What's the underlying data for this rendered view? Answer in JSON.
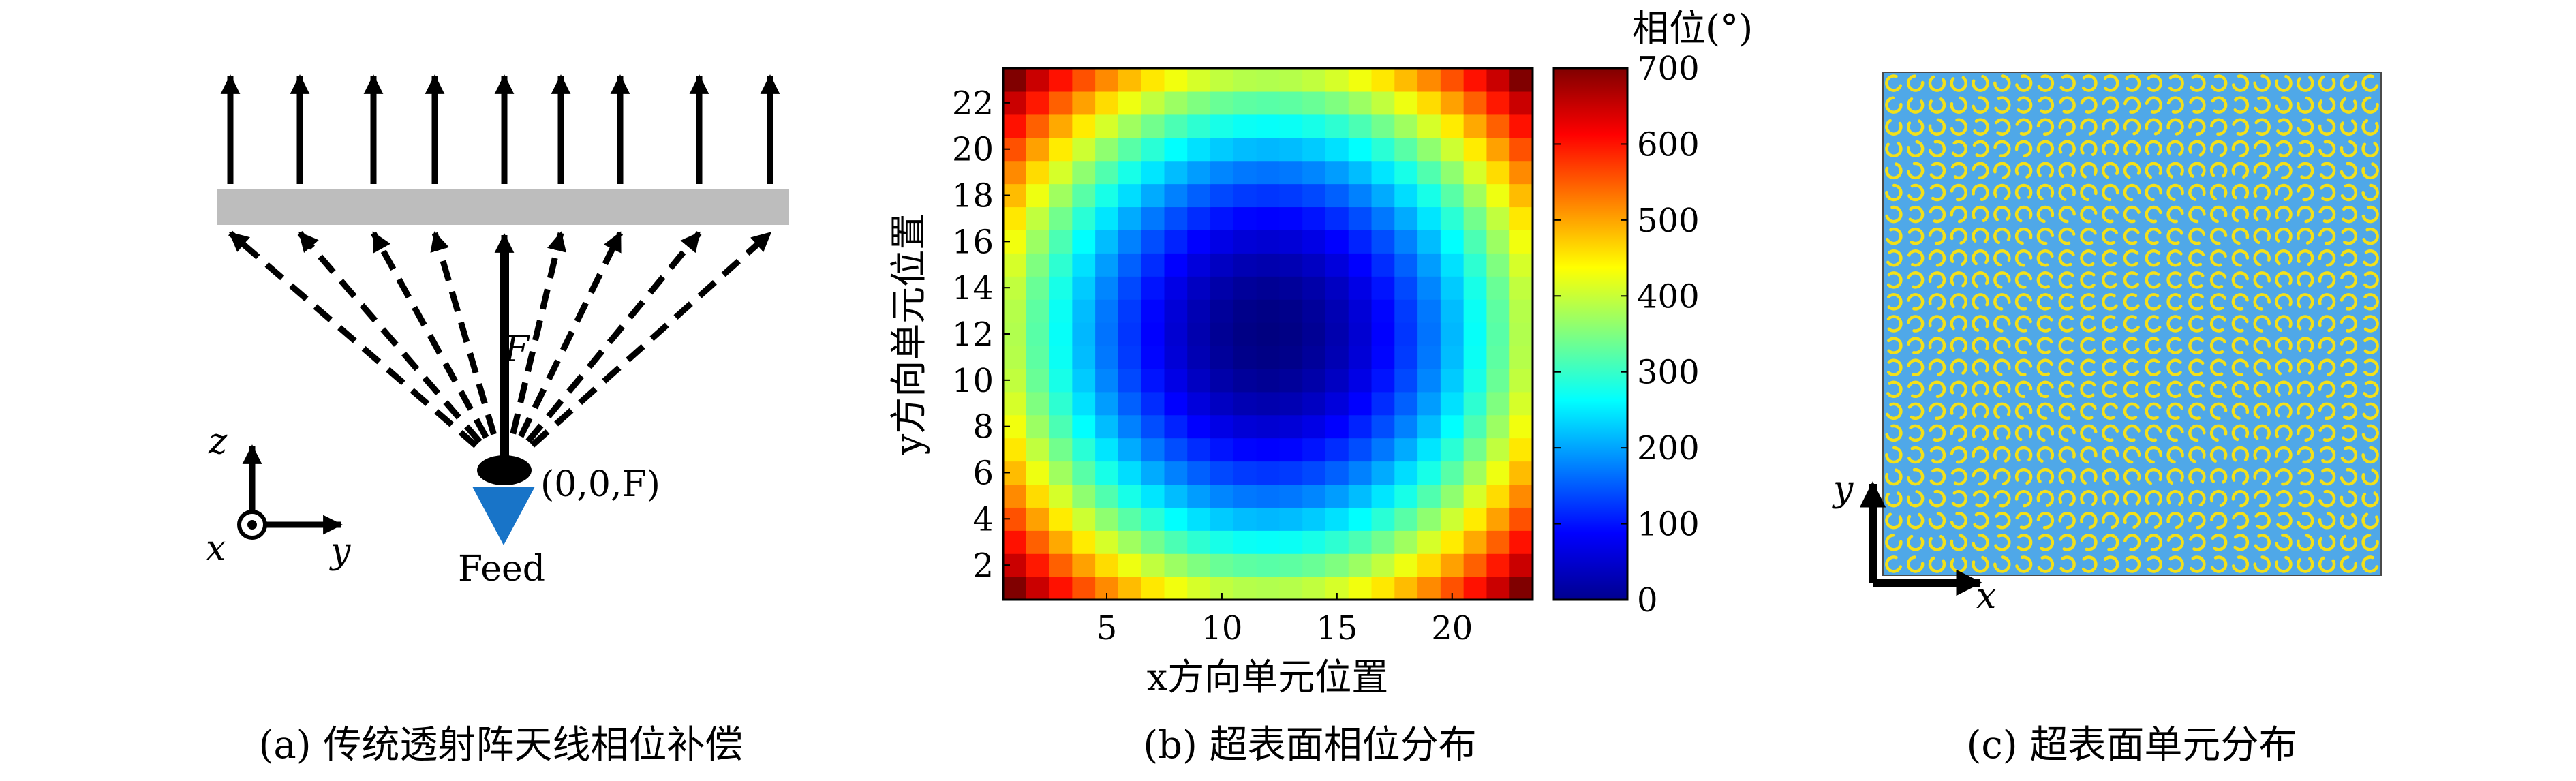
{
  "panel_a": {
    "caption": "(a) 传统透射阵天线相位补偿",
    "focal_label": "F",
    "focal_coord": "(0,0,F)",
    "feed_label": "Feed",
    "axis_z": "z",
    "axis_x": "x",
    "axis_y": "y",
    "colors": {
      "array_bar": "#bdbdbd",
      "feed": "#1874c8"
    }
  },
  "panel_b": {
    "caption": "(b) 超表面相位分布",
    "chart_data": {
      "type": "heatmap",
      "title": "",
      "xlabel": "x方向单元位置",
      "ylabel": "y方向单元位置",
      "grid_size": [
        23,
        23
      ],
      "xlim": [
        0.5,
        23.5
      ],
      "ylim": [
        0.5,
        23.5
      ],
      "x_ticks": [
        5,
        10,
        15,
        20
      ],
      "y_ticks": [
        2,
        4,
        6,
        8,
        10,
        12,
        14,
        16,
        18,
        20,
        22
      ],
      "colormap": "jet",
      "colorbar": {
        "label": "相位(°)",
        "range": [
          0,
          700
        ],
        "ticks": [
          0,
          100,
          200,
          300,
          400,
          500,
          600,
          700
        ]
      },
      "center": [
        12,
        12
      ],
      "phase_model": "hyperbolic lens compensation: 0° at center, rising to ~700° at the corners",
      "center_value": 0,
      "edge_mid_value": 340,
      "corner_value": 700
    }
  },
  "panel_c": {
    "caption": "(c) 超表面单元分布",
    "axis_x": "x",
    "axis_y": "y",
    "colors": {
      "background": "#4fa8e8",
      "element": "#f2e01a"
    },
    "grid_size": [
      23,
      23
    ]
  }
}
